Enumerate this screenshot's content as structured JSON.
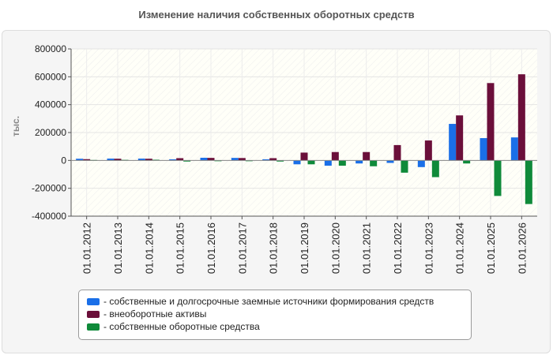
{
  "chart_data": {
    "type": "bar",
    "title": "Изменение наличия собственных оборотных средств",
    "ylabel": "тыс.",
    "xlabel": "",
    "ylim": [
      -400000,
      800000
    ],
    "yticks": [
      800000,
      600000,
      400000,
      200000,
      0,
      -200000,
      -400000
    ],
    "ytick_labels": [
      "800000",
      "600000",
      "400000",
      "200000",
      "0",
      "-200000",
      "-400000"
    ],
    "grid": true,
    "legend_position": "bottom",
    "categories": [
      "01.01.2012",
      "01.01.2013",
      "01.01.2014",
      "01.01.2015",
      "01.01.2016",
      "01.01.2017",
      "01.01.2018",
      "01.01.2019",
      "01.01.2020",
      "01.01.2021",
      "01.01.2022",
      "01.01.2023",
      "01.01.2024",
      "01.01.2025",
      "01.01.2026"
    ],
    "series": [
      {
        "name": "собственные и долгосрочные заемные источники формирования средств",
        "color": "#1a6fe8",
        "values": [
          12000,
          13000,
          13000,
          8000,
          19000,
          18000,
          8000,
          -28000,
          -38000,
          -22000,
          -18000,
          -48000,
          262000,
          160000,
          165000
        ]
      },
      {
        "name": "внеоборотные активы",
        "color": "#6b0f3a",
        "values": [
          9000,
          12000,
          12000,
          16000,
          18000,
          17000,
          16000,
          56000,
          60000,
          60000,
          110000,
          143000,
          323000,
          555000,
          618000
        ]
      },
      {
        "name": "собственные оборотные средства",
        "color": "#0f8a3a",
        "values": [
          3000,
          4000,
          5000,
          -8000,
          -3000,
          -3000,
          -8000,
          -28000,
          -38000,
          -42000,
          -88000,
          -120000,
          -22000,
          -255000,
          -313000
        ]
      }
    ]
  }
}
